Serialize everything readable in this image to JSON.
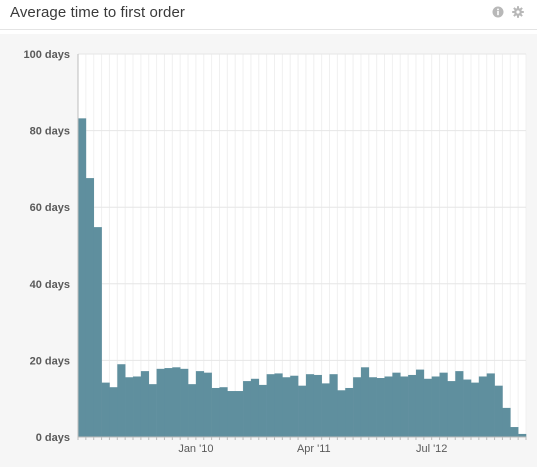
{
  "widget": {
    "title": "Average time to first order",
    "icons": {
      "info": "info-icon",
      "settings": "gear-icon"
    }
  },
  "colors": {
    "bar": "#5f8f9e",
    "grid": "#e6e6e6",
    "axis": "#bcbcbc"
  },
  "chart_data": {
    "type": "bar",
    "title": "Average time to first order",
    "ylim": [
      0,
      100
    ],
    "y_ticks": [
      {
        "value": 0,
        "label": "0 days"
      },
      {
        "value": 20,
        "label": "20 days"
      },
      {
        "value": 40,
        "label": "40 days"
      },
      {
        "value": 60,
        "label": "60 days"
      },
      {
        "value": 80,
        "label": "80 days"
      },
      {
        "value": 100,
        "label": "100 days"
      }
    ],
    "x_ticks": [
      {
        "index": 15,
        "label": "Jan '10"
      },
      {
        "index": 30,
        "label": "Apr '11"
      },
      {
        "index": 45,
        "label": "Jul '12"
      }
    ],
    "grid": true,
    "values": [
      83.2,
      67.6,
      54.8,
      14.2,
      13,
      19,
      15.6,
      15.8,
      17.2,
      13.8,
      17.8,
      18,
      18.2,
      17.8,
      13.8,
      17.2,
      16.8,
      12.8,
      13,
      12,
      12,
      14.6,
      15.2,
      13.6,
      16.4,
      16.6,
      15.6,
      16,
      13.4,
      16.4,
      16.2,
      14,
      16.4,
      12.2,
      12.8,
      15.6,
      18.2,
      15.6,
      15.4,
      15.8,
      16.8,
      15.8,
      16.2,
      17.6,
      15.2,
      15.8,
      16.8,
      14.6,
      17.2,
      15,
      14.2,
      15.8,
      16.6,
      13.4,
      7.6,
      2.6,
      0.8
    ]
  }
}
